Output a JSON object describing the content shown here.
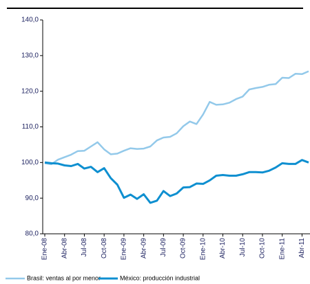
{
  "chart_data": {
    "type": "line",
    "categories": [
      "Ene-08",
      null,
      null,
      "Abr-08",
      null,
      null,
      "Jul-08",
      null,
      null,
      "Oct-08",
      null,
      null,
      "Ene-09",
      null,
      null,
      "Abr-09",
      null,
      null,
      "Jul-09",
      null,
      null,
      "Oct-09",
      null,
      null,
      "Ene-10",
      null,
      null,
      "Abr-10",
      null,
      null,
      "Jul-10",
      null,
      null,
      "Oct-10",
      null,
      null,
      "Ene-11",
      null,
      null,
      "Abr-11",
      null
    ],
    "series": [
      {
        "name": "Brasil: ventas al por menor",
        "color": "#93c9ea",
        "values": [
          99.8,
          99.5,
          100.8,
          101.5,
          102.2,
          103.2,
          103.3,
          104.5,
          105.7,
          103.7,
          102.3,
          102.5,
          103.3,
          104.0,
          103.8,
          103.9,
          104.5,
          106.2,
          107.0,
          107.2,
          108.2,
          110.2,
          111.5,
          110.8,
          113.5,
          117.0,
          116.2,
          116.3,
          116.8,
          117.8,
          118.5,
          120.5,
          120.9,
          121.2,
          121.8,
          122.0,
          123.8,
          123.7,
          124.9,
          124.8,
          125.6
        ]
      },
      {
        "name": "México: producción industrial",
        "color": "#0e8fd0",
        "values": [
          100.0,
          99.8,
          99.7,
          99.2,
          99.0,
          99.6,
          98.3,
          98.8,
          97.3,
          98.4,
          95.6,
          93.8,
          90.1,
          91.0,
          89.8,
          91.1,
          88.7,
          89.3,
          92.0,
          90.6,
          91.3,
          93.0,
          93.1,
          94.1,
          94.0,
          95.0,
          96.3,
          96.5,
          96.3,
          96.3,
          96.7,
          97.3,
          97.3,
          97.2,
          97.7,
          98.6,
          99.8,
          99.6,
          99.6,
          100.7,
          100.0
        ]
      }
    ],
    "ylim": [
      80,
      140
    ],
    "yticks": [
      {
        "value": 80,
        "label": "80,0"
      },
      {
        "value": 90,
        "label": "90,0"
      },
      {
        "value": 100,
        "label": "100,0"
      },
      {
        "value": 110,
        "label": "110,0"
      },
      {
        "value": 120,
        "label": "120,0"
      },
      {
        "value": 130,
        "label": "130,0"
      },
      {
        "value": 140,
        "label": "140,0"
      }
    ],
    "grid": false
  }
}
